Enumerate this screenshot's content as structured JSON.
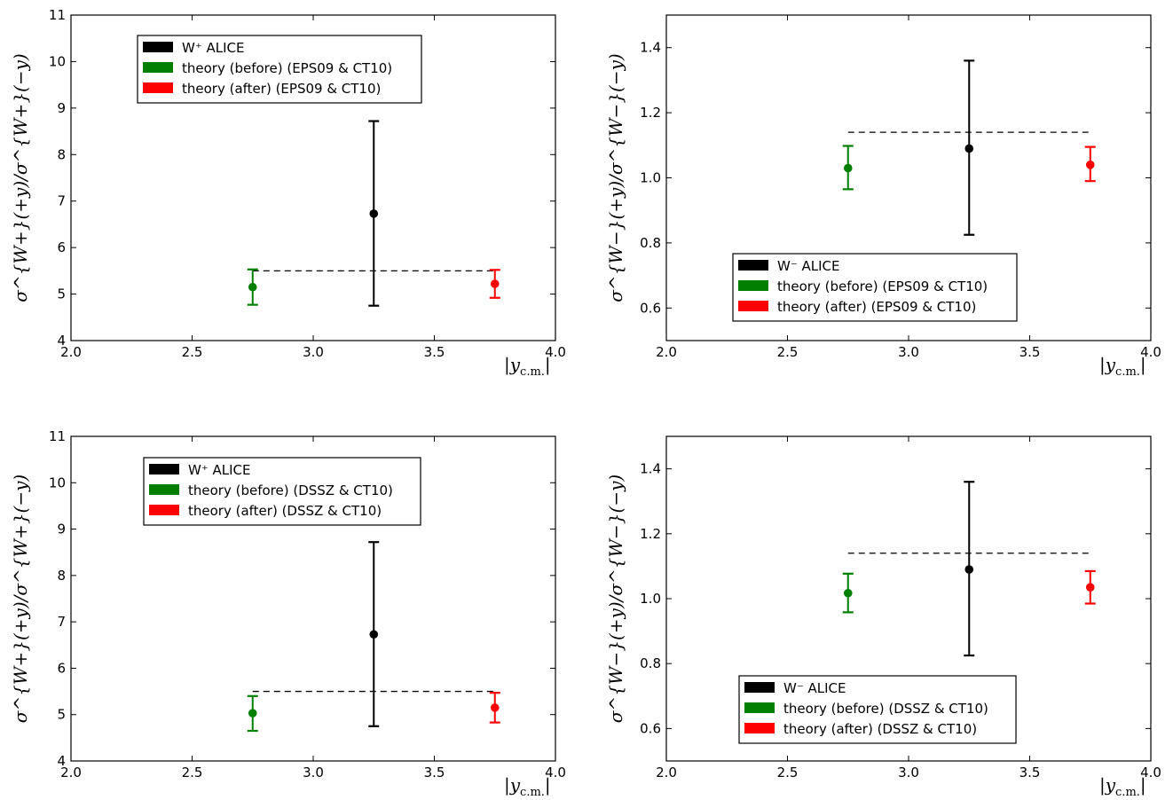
{
  "chart_data": [
    {
      "type": "scatter",
      "panel": "top-left",
      "xlabel": "|y",
      "xlabel_sub": "c.m.",
      "xlabel_end": "|",
      "ylabel": "σ^{W+}(+y)/σ^{W+}(−y)",
      "xlim": [
        2.0,
        4.0
      ],
      "ylim": [
        4,
        11
      ],
      "xticks": [
        "2.0",
        "2.5",
        "3.0",
        "3.5",
        "4.0"
      ],
      "yticks": [
        "4",
        "5",
        "6",
        "7",
        "8",
        "9",
        "10",
        "11"
      ],
      "grid": false,
      "legend_position": "upper-left",
      "reference_line": {
        "y": 5.5,
        "x": [
          2.75,
          3.75
        ],
        "style": "dashed",
        "color": "#000000"
      },
      "series": [
        {
          "name": "W⁺ ALICE",
          "color": "#000000",
          "x": 3.25,
          "y": 6.73,
          "yerr_low": 4.75,
          "yerr_high": 8.72
        },
        {
          "name": "theory (before)  (EPS09 & CT10)",
          "color": "#007f00",
          "x": 2.75,
          "y": 5.15,
          "yerr_low": 4.77,
          "yerr_high": 5.53
        },
        {
          "name": "theory (after)  (EPS09 & CT10)",
          "color": "#ff0000",
          "x": 3.75,
          "y": 5.22,
          "yerr_low": 4.92,
          "yerr_high": 5.52
        }
      ]
    },
    {
      "type": "scatter",
      "panel": "top-right",
      "xlabel": "|y",
      "xlabel_sub": "c.m.",
      "xlabel_end": "|",
      "ylabel": "σ^{W−}(+y)/σ^{W−}(−y)",
      "xlim": [
        2.0,
        4.0
      ],
      "ylim": [
        0.5,
        1.5
      ],
      "xticks": [
        "2.0",
        "2.5",
        "3.0",
        "3.5",
        "4.0"
      ],
      "yticks": [
        "0.6",
        "0.8",
        "1.0",
        "1.2",
        "1.4"
      ],
      "grid": false,
      "legend_position": "lower-center",
      "reference_line": {
        "y": 1.14,
        "x": [
          2.75,
          3.75
        ],
        "style": "dashed",
        "color": "#000000"
      },
      "series": [
        {
          "name": "W⁻ ALICE",
          "color": "#000000",
          "x": 3.25,
          "y": 1.09,
          "yerr_low": 0.825,
          "yerr_high": 1.36
        },
        {
          "name": "theory (before)  (EPS09 & CT10)",
          "color": "#007f00",
          "x": 2.75,
          "y": 1.03,
          "yerr_low": 0.965,
          "yerr_high": 1.098
        },
        {
          "name": "theory (after)  (EPS09 & CT10)",
          "color": "#ff0000",
          "x": 3.75,
          "y": 1.04,
          "yerr_low": 0.99,
          "yerr_high": 1.095
        }
      ]
    },
    {
      "type": "scatter",
      "panel": "bottom-left",
      "xlabel": "|y",
      "xlabel_sub": "c.m.",
      "xlabel_end": "|",
      "ylabel": "σ^{W+}(+y)/σ^{W+}(−y)",
      "xlim": [
        2.0,
        4.0
      ],
      "ylim": [
        4,
        11
      ],
      "xticks": [
        "2.0",
        "2.5",
        "3.0",
        "3.5",
        "4.0"
      ],
      "yticks": [
        "4",
        "5",
        "6",
        "7",
        "8",
        "9",
        "10",
        "11"
      ],
      "grid": false,
      "legend_position": "upper-left",
      "reference_line": {
        "y": 5.5,
        "x": [
          2.75,
          3.75
        ],
        "style": "dashed",
        "color": "#000000"
      },
      "series": [
        {
          "name": "W⁺ ALICE",
          "color": "#000000",
          "x": 3.25,
          "y": 6.73,
          "yerr_low": 4.75,
          "yerr_high": 8.72
        },
        {
          "name": "theory (before)  (DSSZ & CT10)",
          "color": "#007f00",
          "x": 2.75,
          "y": 5.03,
          "yerr_low": 4.65,
          "yerr_high": 5.4
        },
        {
          "name": "theory (after)  (DSSZ & CT10)",
          "color": "#ff0000",
          "x": 3.75,
          "y": 5.15,
          "yerr_low": 4.83,
          "yerr_high": 5.47
        }
      ]
    },
    {
      "type": "scatter",
      "panel": "bottom-right",
      "xlabel": "|y",
      "xlabel_sub": "c.m.",
      "xlabel_end": "|",
      "ylabel": "σ^{W−}(+y)/σ^{W−}(−y)",
      "xlim": [
        2.0,
        4.0
      ],
      "ylim": [
        0.5,
        1.5
      ],
      "xticks": [
        "2.0",
        "2.5",
        "3.0",
        "3.5",
        "4.0"
      ],
      "yticks": [
        "0.6",
        "0.8",
        "1.0",
        "1.2",
        "1.4"
      ],
      "grid": false,
      "legend_position": "lower-center",
      "reference_line": {
        "y": 1.14,
        "x": [
          2.75,
          3.75
        ],
        "style": "dashed",
        "color": "#000000"
      },
      "series": [
        {
          "name": "W⁻ ALICE",
          "color": "#000000",
          "x": 3.25,
          "y": 1.09,
          "yerr_low": 0.825,
          "yerr_high": 1.36
        },
        {
          "name": "theory (before)  (DSSZ & CT10)",
          "color": "#007f00",
          "x": 2.75,
          "y": 1.017,
          "yerr_low": 0.958,
          "yerr_high": 1.077
        },
        {
          "name": "theory (after)  (DSSZ & CT10)",
          "color": "#ff0000",
          "x": 3.75,
          "y": 1.035,
          "yerr_low": 0.985,
          "yerr_high": 1.085
        }
      ]
    }
  ]
}
